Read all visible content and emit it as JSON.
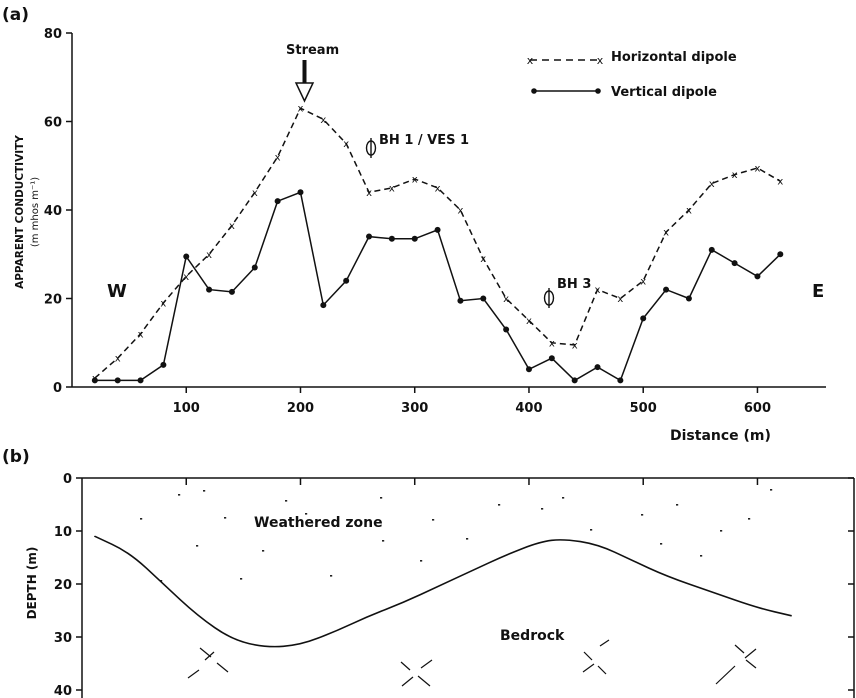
{
  "chart_data": [
    {
      "panel": "(a)",
      "type": "line",
      "xlabel": "Distance (m)",
      "ylabel": "APPARENT CONDUCTIVITY",
      "ylabel_unit": "(m mhos m⁻¹)",
      "xlim": [
        0,
        660
      ],
      "ylim": [
        0,
        80
      ],
      "xticks": [
        100,
        200,
        300,
        400,
        500,
        600
      ],
      "yticks": [
        0,
        20,
        40,
        60,
        80
      ],
      "grid": false,
      "legend": "top-right",
      "series": [
        {
          "name": "Horizontal dipole",
          "style": "dashed-x",
          "x": [
            20,
            40,
            60,
            80,
            100,
            120,
            140,
            160,
            180,
            200,
            220,
            240,
            260,
            280,
            300,
            320,
            340,
            360,
            380,
            400,
            420,
            440,
            460,
            480,
            500,
            520,
            540,
            560,
            580,
            600,
            620
          ],
          "y": [
            2,
            6.5,
            12,
            19,
            25,
            30,
            36.5,
            44,
            52,
            63,
            60.5,
            55,
            44,
            45,
            47,
            45,
            40,
            29,
            20,
            15,
            10,
            9.5,
            22,
            20,
            24,
            35,
            40,
            46,
            48,
            49.5,
            46.5
          ]
        },
        {
          "name": "Vertical dipole",
          "style": "solid-dot",
          "x": [
            20,
            40,
            60,
            80,
            100,
            120,
            140,
            160,
            180,
            200,
            220,
            240,
            260,
            280,
            300,
            320,
            340,
            360,
            380,
            400,
            420,
            440,
            460,
            480,
            500,
            520,
            540,
            560,
            580,
            600,
            620
          ],
          "y": [
            1.5,
            1.5,
            1.5,
            5,
            29.5,
            22,
            21.5,
            27,
            42,
            44,
            18.5,
            24,
            34,
            33.5,
            33.5,
            35.5,
            19.5,
            20,
            13,
            4,
            6.5,
            1.5,
            4.5,
            1.5,
            15.5,
            22,
            20,
            31,
            28,
            25,
            30
          ]
        }
      ],
      "annotations": {
        "stream": {
          "label": "Stream",
          "x": 200
        },
        "bh1": {
          "label": "BH 1 / VES 1",
          "x": 260,
          "y": 54
        },
        "bh3": {
          "label": "BH 3",
          "x": 420,
          "y": 20
        },
        "west": "W",
        "east": "E"
      }
    },
    {
      "panel": "(b)",
      "type": "line",
      "ylabel": "DEPTH (m)",
      "xlim": [
        0,
        660
      ],
      "ylim": [
        0,
        40
      ],
      "yticks": [
        0,
        10,
        20,
        30,
        40
      ],
      "xticks": [
        100,
        200,
        300,
        400,
        500,
        600
      ],
      "grid": false,
      "series": [
        {
          "name": "",
          "style": "solid",
          "x": [
            20,
            50,
            80,
            110,
            140,
            170,
            200,
            230,
            260,
            290,
            320,
            350,
            380,
            410,
            430,
            460,
            490,
            520,
            560,
            600,
            630
          ],
          "y": [
            11,
            14,
            20,
            26,
            30.5,
            32,
            31.5,
            29,
            26,
            23.5,
            20.5,
            17.5,
            14.5,
            12,
            11.5,
            12.5,
            15.5,
            18.5,
            21.5,
            24.5,
            26
          ]
        }
      ],
      "labels": {
        "upper": "Weathered zone",
        "lower": "Bedrock"
      }
    }
  ]
}
